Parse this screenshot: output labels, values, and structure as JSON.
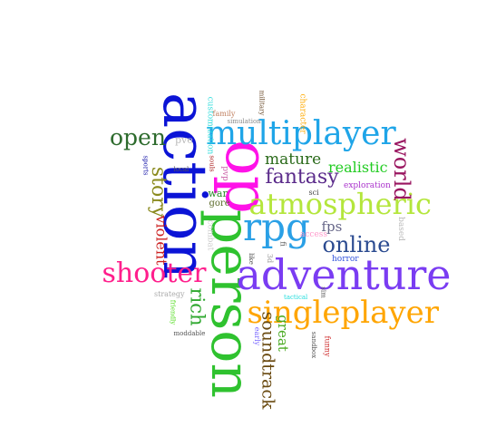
{
  "words": [
    {
      "key": "action",
      "text": "action",
      "color": "#0b14d6",
      "rot": 90
    },
    {
      "key": "op",
      "text": "op",
      "color": "#ff12e8",
      "rot": 90
    },
    {
      "key": "person",
      "text": "person",
      "color": "#2fc22f",
      "rot": 90
    },
    {
      "key": "adventure",
      "text": "adventure",
      "color": "#7a3cf2",
      "rot": 0
    },
    {
      "key": "multiplayer",
      "text": "multiplayer",
      "color": "#1fa5e8",
      "rot": 0
    },
    {
      "key": "singleplayer",
      "text": "singleplayer",
      "color": "#ffa500",
      "rot": 0
    },
    {
      "key": "atmospheric",
      "text": "atmospheric",
      "color": "#b4e63c",
      "rot": 0
    },
    {
      "key": "rpg",
      "text": "rpg",
      "color": "#2aa0e6",
      "rot": 0
    },
    {
      "key": "shooter",
      "text": "shooter",
      "color": "#ff1e8c",
      "rot": 0
    },
    {
      "key": "online",
      "text": "online",
      "color": "#2a4a90",
      "rot": 0
    },
    {
      "key": "open",
      "text": "open",
      "color": "#2d6b2d",
      "rot": 0
    },
    {
      "key": "world",
      "text": "world",
      "color": "#9a1660",
      "rot": 90
    },
    {
      "key": "fantasy",
      "text": "fantasy",
      "color": "#5a2a8a",
      "rot": 0
    },
    {
      "key": "story",
      "text": "story",
      "color": "#8a8a1e",
      "rot": 90
    },
    {
      "key": "rich",
      "text": "rich",
      "color": "#2ea82e",
      "rot": 90
    },
    {
      "key": "soundtrack",
      "text": "soundtrack",
      "color": "#6a4a10",
      "rot": 90
    },
    {
      "key": "mature",
      "text": "mature",
      "color": "#2a6a1a",
      "rot": 0
    },
    {
      "key": "realistic",
      "text": "realistic",
      "color": "#22cc22",
      "rot": 0
    },
    {
      "key": "violent",
      "text": "violent",
      "color": "#cc2222",
      "rot": 90
    },
    {
      "key": "great",
      "text": "great",
      "color": "#4aaa22",
      "rot": 90
    },
    {
      "key": "fps",
      "text": "fps",
      "color": "#666688",
      "rot": 0
    },
    {
      "key": "pve",
      "text": "pve",
      "color": "#bbbbbb",
      "rot": 0
    },
    {
      "key": "exploration",
      "text": "exploration",
      "color": "#aa33cc",
      "rot": 0
    },
    {
      "key": "based",
      "text": "based",
      "color": "#bbbbbb",
      "rot": 90
    },
    {
      "key": "war",
      "text": "war",
      "color": "#2a8a2a",
      "rot": 0
    },
    {
      "key": "gore",
      "text": "gore",
      "color": "#5a6a2a",
      "rot": 0
    },
    {
      "key": "customization",
      "text": "customization",
      "color": "#33dddd",
      "rot": 90
    },
    {
      "key": "combat",
      "text": "combat",
      "color": "#cccccc",
      "rot": 90
    },
    {
      "key": "character",
      "text": "character",
      "color": "#ffaa00",
      "rot": 90
    },
    {
      "key": "military",
      "text": "military",
      "color": "#6a4a2a",
      "rot": 90
    },
    {
      "key": "simulation",
      "text": "simulation",
      "color": "#8a8a8a",
      "rot": 0
    },
    {
      "key": "family",
      "text": "family",
      "color": "#c08060",
      "rot": 0
    },
    {
      "key": "sports",
      "text": "sports",
      "color": "#1a1aaa",
      "rot": 90
    },
    {
      "key": "local",
      "text": "local",
      "color": "#555555",
      "rot": 0
    },
    {
      "key": "souls",
      "text": "souls",
      "color": "#aa2222",
      "rot": 90
    },
    {
      "key": "pvp",
      "text": "pvp",
      "color": "#cc66aa",
      "rot": 90
    },
    {
      "key": "sci",
      "text": "sci",
      "color": "#444444",
      "rot": 0
    },
    {
      "key": "fi",
      "text": "fi",
      "color": "#555555",
      "rot": 90
    },
    {
      "key": "3d",
      "text": "3d",
      "color": "#999999",
      "rot": 90
    },
    {
      "key": "like",
      "text": "like",
      "color": "#555555",
      "rot": 90
    },
    {
      "key": "access",
      "text": "access",
      "color": "#ff9acc",
      "rot": 0
    },
    {
      "key": "horror",
      "text": "horror",
      "color": "#3355dd",
      "rot": 0
    },
    {
      "key": "strategy",
      "text": "strategy",
      "color": "#aaaaaa",
      "rot": 0
    },
    {
      "key": "tactical",
      "text": "tactical",
      "color": "#22dddd",
      "rot": 0
    },
    {
      "key": "sim",
      "text": "sim",
      "color": "#555555",
      "rot": 90
    },
    {
      "key": "friendly",
      "text": "friendly",
      "color": "#55dd22",
      "rot": 90
    },
    {
      "key": "moddable",
      "text": "moddable",
      "color": "#555555",
      "rot": 0
    },
    {
      "key": "early",
      "text": "early",
      "color": "#7766ff",
      "rot": 90
    },
    {
      "key": "sandbox",
      "text": "sandbox",
      "color": "#555555",
      "rot": 90
    },
    {
      "key": "funny",
      "text": "funny",
      "color": "#cc2222",
      "rot": 90
    }
  ]
}
